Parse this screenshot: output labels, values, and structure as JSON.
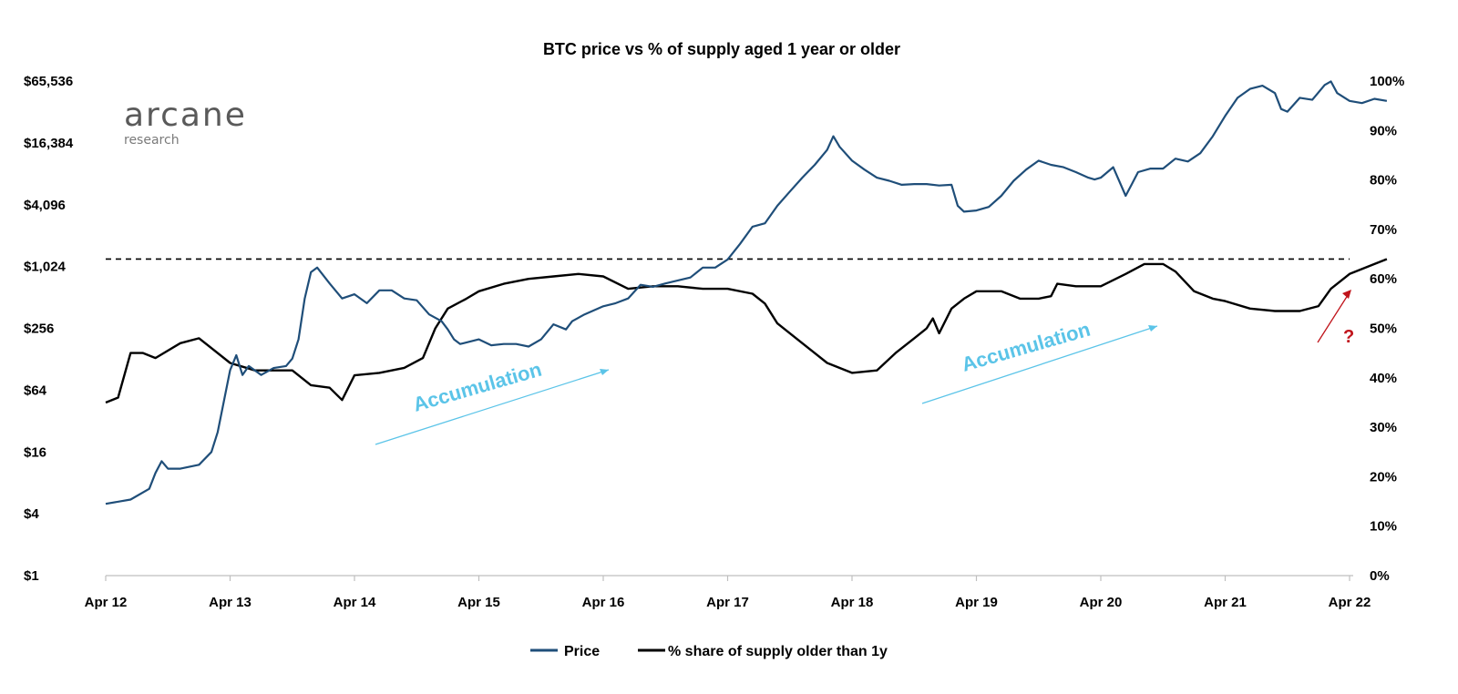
{
  "chart_data": {
    "type": "line",
    "title": "BTC price vs % of supply aged 1 year or older",
    "x_ticks": [
      "Apr 12",
      "Apr 13",
      "Apr 14",
      "Apr 15",
      "Apr 16",
      "Apr 17",
      "Apr 18",
      "Apr 19",
      "Apr 20",
      "Apr 21",
      "Apr 22"
    ],
    "y_left": {
      "scale": "log2",
      "ticks": [
        "$1",
        "$4",
        "$16",
        "$64",
        "$256",
        "$1,024",
        "$4,096",
        "$16,384",
        "$65,536"
      ],
      "ylim": [
        1,
        65536
      ]
    },
    "y_right": {
      "ticks": [
        "0%",
        "10%",
        "20%",
        "30%",
        "40%",
        "50%",
        "60%",
        "70%",
        "80%",
        "90%",
        "100%"
      ],
      "ylim": [
        0,
        100
      ]
    },
    "series": [
      {
        "name": "Price",
        "color": "#1f4e79",
        "axis": "left",
        "points": [
          [
            2012.0,
            5
          ],
          [
            2012.2,
            5.5
          ],
          [
            2012.35,
            7
          ],
          [
            2012.4,
            10
          ],
          [
            2012.45,
            13
          ],
          [
            2012.5,
            11
          ],
          [
            2012.6,
            11
          ],
          [
            2012.75,
            12
          ],
          [
            2012.85,
            16
          ],
          [
            2012.9,
            25
          ],
          [
            2012.95,
            50
          ],
          [
            2013.0,
            100
          ],
          [
            2013.05,
            140
          ],
          [
            2013.1,
            90
          ],
          [
            2013.15,
            110
          ],
          [
            2013.25,
            90
          ],
          [
            2013.35,
            105
          ],
          [
            2013.45,
            110
          ],
          [
            2013.5,
            130
          ],
          [
            2013.55,
            200
          ],
          [
            2013.6,
            500
          ],
          [
            2013.65,
            900
          ],
          [
            2013.7,
            1000
          ],
          [
            2013.8,
            700
          ],
          [
            2013.9,
            500
          ],
          [
            2014.0,
            550
          ],
          [
            2014.1,
            450
          ],
          [
            2014.2,
            600
          ],
          [
            2014.3,
            600
          ],
          [
            2014.4,
            500
          ],
          [
            2014.5,
            480
          ],
          [
            2014.6,
            350
          ],
          [
            2014.7,
            300
          ],
          [
            2014.75,
            250
          ],
          [
            2014.8,
            200
          ],
          [
            2014.85,
            180
          ],
          [
            2015.0,
            200
          ],
          [
            2015.1,
            175
          ],
          [
            2015.2,
            180
          ],
          [
            2015.3,
            180
          ],
          [
            2015.4,
            170
          ],
          [
            2015.5,
            200
          ],
          [
            2015.6,
            280
          ],
          [
            2015.7,
            250
          ],
          [
            2015.75,
            300
          ],
          [
            2015.85,
            350
          ],
          [
            2016.0,
            420
          ],
          [
            2016.1,
            450
          ],
          [
            2016.2,
            500
          ],
          [
            2016.3,
            680
          ],
          [
            2016.4,
            650
          ],
          [
            2016.5,
            700
          ],
          [
            2016.6,
            750
          ],
          [
            2016.7,
            800
          ],
          [
            2016.8,
            1000
          ],
          [
            2016.9,
            1000
          ],
          [
            2017.0,
            1200
          ],
          [
            2017.1,
            1700
          ],
          [
            2017.2,
            2500
          ],
          [
            2017.3,
            2700
          ],
          [
            2017.4,
            4000
          ],
          [
            2017.5,
            5500
          ],
          [
            2017.6,
            7500
          ],
          [
            2017.7,
            10000
          ],
          [
            2017.8,
            14000
          ],
          [
            2017.85,
            19000
          ],
          [
            2017.9,
            15000
          ],
          [
            2018.0,
            11000
          ],
          [
            2018.1,
            9000
          ],
          [
            2018.2,
            7500
          ],
          [
            2018.3,
            7000
          ],
          [
            2018.4,
            6400
          ],
          [
            2018.5,
            6500
          ],
          [
            2018.6,
            6500
          ],
          [
            2018.7,
            6300
          ],
          [
            2018.8,
            6400
          ],
          [
            2018.85,
            4000
          ],
          [
            2018.9,
            3500
          ],
          [
            2019.0,
            3600
          ],
          [
            2019.1,
            3900
          ],
          [
            2019.2,
            5000
          ],
          [
            2019.3,
            7000
          ],
          [
            2019.4,
            9000
          ],
          [
            2019.5,
            11000
          ],
          [
            2019.6,
            10000
          ],
          [
            2019.7,
            9500
          ],
          [
            2019.8,
            8500
          ],
          [
            2019.9,
            7500
          ],
          [
            2019.95,
            7200
          ],
          [
            2020.0,
            7500
          ],
          [
            2020.1,
            9500
          ],
          [
            2020.2,
            5000
          ],
          [
            2020.25,
            6500
          ],
          [
            2020.3,
            8500
          ],
          [
            2020.4,
            9200
          ],
          [
            2020.5,
            9200
          ],
          [
            2020.6,
            11500
          ],
          [
            2020.7,
            10800
          ],
          [
            2020.8,
            13000
          ],
          [
            2020.9,
            19000
          ],
          [
            2021.0,
            30000
          ],
          [
            2021.1,
            45000
          ],
          [
            2021.2,
            55000
          ],
          [
            2021.3,
            59000
          ],
          [
            2021.4,
            50000
          ],
          [
            2021.45,
            35000
          ],
          [
            2021.5,
            33000
          ],
          [
            2021.6,
            45000
          ],
          [
            2021.7,
            43000
          ],
          [
            2021.8,
            60000
          ],
          [
            2021.85,
            65000
          ],
          [
            2021.9,
            50000
          ],
          [
            2022.0,
            42000
          ],
          [
            2022.1,
            40000
          ],
          [
            2022.2,
            44000
          ],
          [
            2022.3,
            42000
          ]
        ]
      },
      {
        "name": "% share of supply older than 1y",
        "color": "#000000",
        "axis": "right",
        "points": [
          [
            2012.0,
            35
          ],
          [
            2012.1,
            36
          ],
          [
            2012.2,
            45
          ],
          [
            2012.3,
            45
          ],
          [
            2012.4,
            44
          ],
          [
            2012.6,
            47
          ],
          [
            2012.75,
            48
          ],
          [
            2012.85,
            46
          ],
          [
            2013.0,
            43
          ],
          [
            2013.2,
            41.5
          ],
          [
            2013.4,
            41.5
          ],
          [
            2013.5,
            41.5
          ],
          [
            2013.65,
            38.5
          ],
          [
            2013.8,
            38
          ],
          [
            2013.9,
            35.5
          ],
          [
            2014.0,
            40.5
          ],
          [
            2014.2,
            41
          ],
          [
            2014.4,
            42
          ],
          [
            2014.55,
            44
          ],
          [
            2014.65,
            50
          ],
          [
            2014.75,
            54
          ],
          [
            2014.9,
            56
          ],
          [
            2015.0,
            57.5
          ],
          [
            2015.2,
            59
          ],
          [
            2015.4,
            60
          ],
          [
            2015.6,
            60.5
          ],
          [
            2015.8,
            61
          ],
          [
            2016.0,
            60.5
          ],
          [
            2016.2,
            58
          ],
          [
            2016.4,
            58.5
          ],
          [
            2016.6,
            58.5
          ],
          [
            2016.8,
            58
          ],
          [
            2017.0,
            58
          ],
          [
            2017.2,
            57
          ],
          [
            2017.3,
            55
          ],
          [
            2017.4,
            51
          ],
          [
            2017.6,
            47
          ],
          [
            2017.8,
            43
          ],
          [
            2018.0,
            41
          ],
          [
            2018.2,
            41.5
          ],
          [
            2018.35,
            45
          ],
          [
            2018.5,
            48
          ],
          [
            2018.6,
            50
          ],
          [
            2018.65,
            52
          ],
          [
            2018.7,
            49
          ],
          [
            2018.8,
            54
          ],
          [
            2018.9,
            56
          ],
          [
            2019.0,
            57.5
          ],
          [
            2019.2,
            57.5
          ],
          [
            2019.35,
            56
          ],
          [
            2019.5,
            56
          ],
          [
            2019.6,
            56.5
          ],
          [
            2019.65,
            59
          ],
          [
            2019.8,
            58.5
          ],
          [
            2020.0,
            58.5
          ],
          [
            2020.2,
            61
          ],
          [
            2020.35,
            63
          ],
          [
            2020.5,
            63
          ],
          [
            2020.6,
            61.5
          ],
          [
            2020.75,
            57.5
          ],
          [
            2020.9,
            56
          ],
          [
            2021.0,
            55.5
          ],
          [
            2021.2,
            54
          ],
          [
            2021.4,
            53.5
          ],
          [
            2021.6,
            53.5
          ],
          [
            2021.75,
            54.5
          ],
          [
            2021.85,
            58
          ],
          [
            2022.0,
            61
          ],
          [
            2022.2,
            63
          ],
          [
            2022.3,
            64
          ]
        ]
      }
    ],
    "reference_line": {
      "axis": "right",
      "value": 64,
      "style": "dashed"
    },
    "annotations": [
      {
        "text": "Accumulation",
        "color": "#5bc4e8"
      },
      {
        "text": "Accumulation",
        "color": "#5bc4e8"
      },
      {
        "text": "?",
        "color": "#c0141b"
      }
    ],
    "legend": {
      "placement": "bottom-center"
    },
    "grid": false
  },
  "logo": {
    "main": "arcane",
    "sub": "research"
  }
}
